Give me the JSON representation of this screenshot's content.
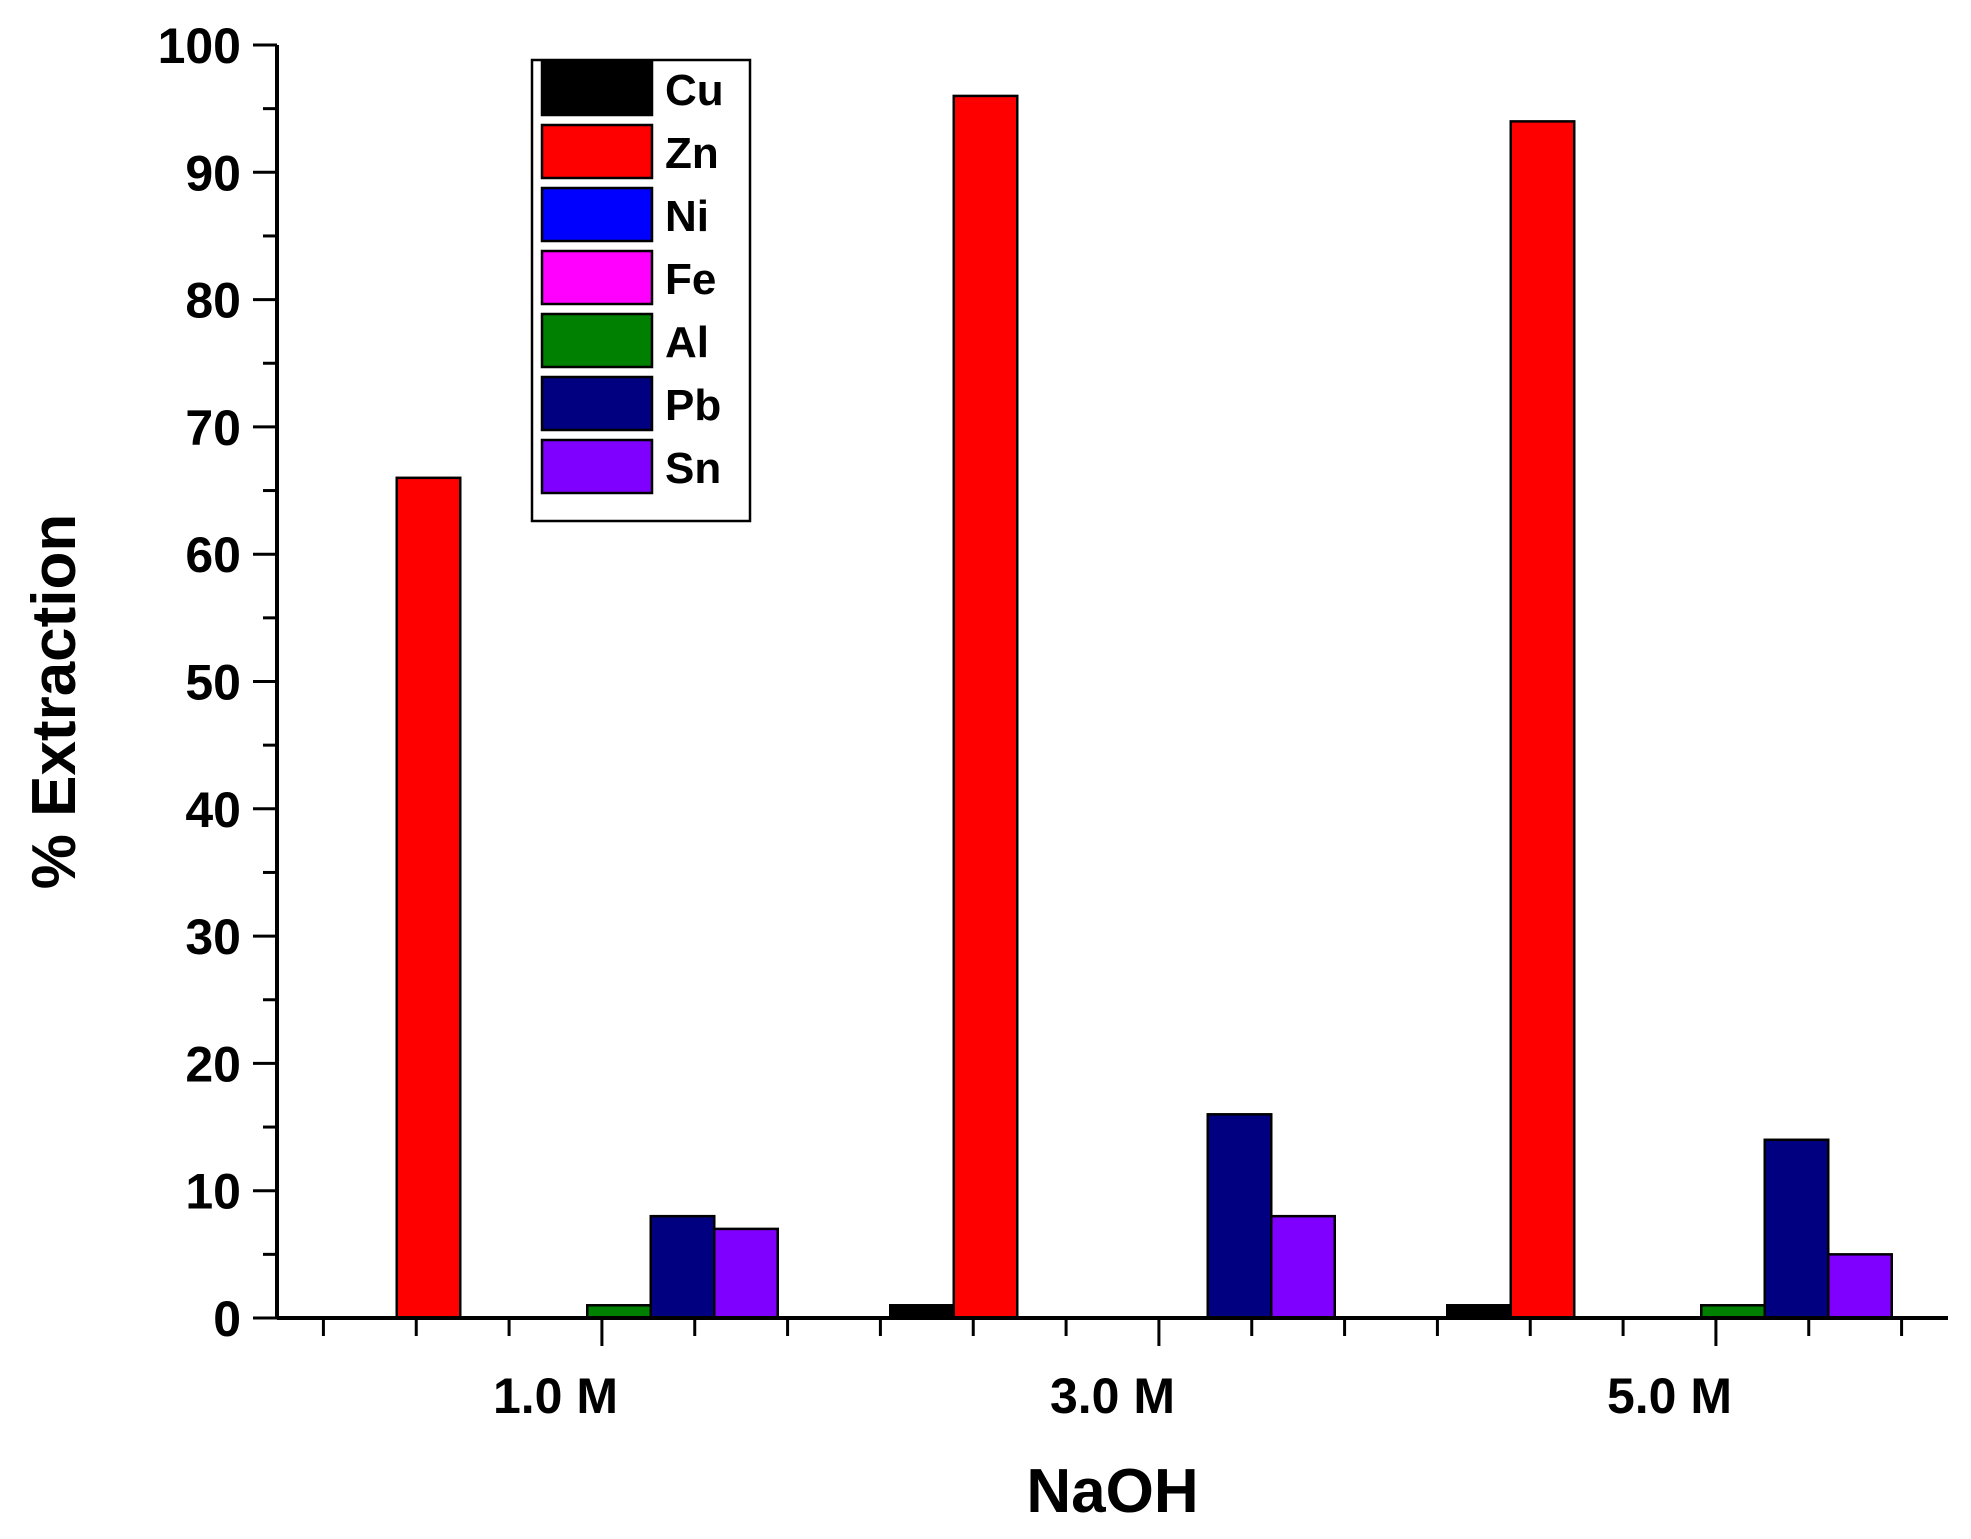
{
  "chart_data": {
    "type": "bar",
    "title": "",
    "xlabel": "NaOH",
    "ylabel": "% Extraction",
    "categories": [
      "1.0 M",
      "3.0 M",
      "5.0 M"
    ],
    "ylim": [
      0,
      100
    ],
    "yticks": [
      "0",
      "10",
      "20",
      "30",
      "40",
      "50",
      "60",
      "70",
      "80",
      "90",
      "100"
    ],
    "legend_position": "top-left",
    "series": [
      {
        "name": "Cu",
        "color": "#000000",
        "values": [
          0,
          1,
          1
        ]
      },
      {
        "name": "Zn",
        "color": "#ff0000",
        "values": [
          66,
          96,
          94
        ]
      },
      {
        "name": "Ni",
        "color": "#0000ff",
        "values": [
          0,
          0,
          0
        ]
      },
      {
        "name": "Fe",
        "color": "#ff00ff",
        "values": [
          0,
          0,
          0
        ]
      },
      {
        "name": "Al",
        "color": "#008000",
        "values": [
          1,
          0,
          1
        ]
      },
      {
        "name": "Pb",
        "color": "#000080",
        "values": [
          8,
          16,
          14
        ]
      },
      {
        "name": "Sn",
        "color": "#8000ff",
        "values": [
          7,
          8,
          5
        ]
      }
    ]
  }
}
